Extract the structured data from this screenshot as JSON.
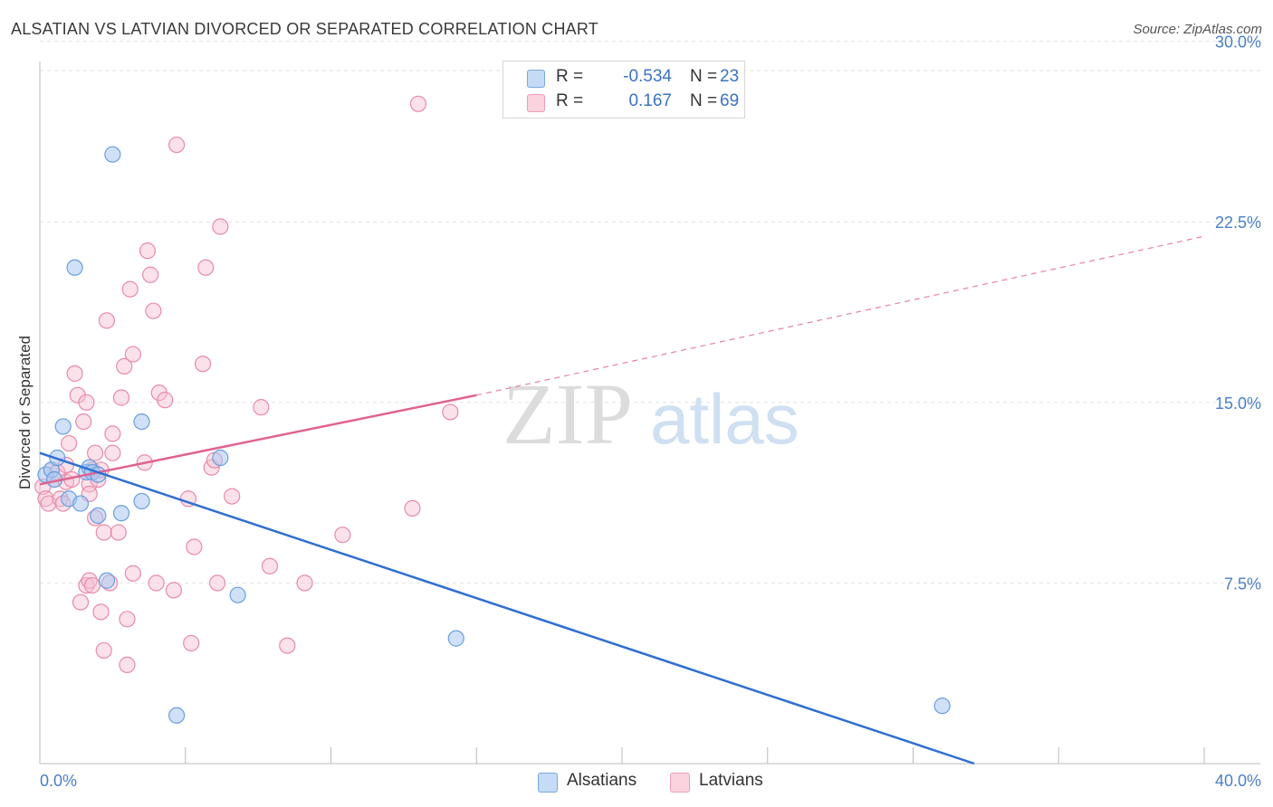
{
  "header": {
    "title": "ALSATIAN VS LATVIAN DIVORCED OR SEPARATED CORRELATION CHART",
    "source": "Source: ZipAtlas.com"
  },
  "legend": {
    "rows": [
      {
        "r_label": "R =",
        "r_value": "-0.534",
        "n_label": "N =",
        "n_value": "23"
      },
      {
        "r_label": "R =",
        "r_value": "0.167",
        "n_label": "N =",
        "n_value": "69"
      }
    ]
  },
  "bottom_legend": {
    "alsatians": "Alsatians",
    "latvians": "Latvians"
  },
  "watermark": {
    "zip": "ZIP",
    "atlas": "atlas"
  },
  "colors": {
    "alsatian_fill": "#a9c8f0",
    "alsatian_stroke": "#6a9edf",
    "alsatian_line": "#2f6fd1",
    "latvian_fill": "#f7bfd0",
    "latvian_stroke": "#e98aa8",
    "latvian_line": "#e0628f",
    "tick_text": "#4a7fc9"
  },
  "chart_data": {
    "type": "scatter",
    "title": "ALSATIAN VS LATVIAN DIVORCED OR SEPARATED CORRELATION CHART",
    "xlabel": "",
    "ylabel": "Divorced or Separated",
    "xlim": [
      0,
      40
    ],
    "ylim": [
      0,
      31
    ],
    "x_tick_labels": [
      "0.0%",
      "40.0%"
    ],
    "y_ticks": [
      7.5,
      15.0,
      22.5,
      30.0
    ],
    "y_tick_labels": [
      "7.5%",
      "15.0%",
      "22.5%",
      "30.0%"
    ],
    "grid": true,
    "series": [
      {
        "name": "Alsatians",
        "r": -0.534,
        "n": 23,
        "trend": {
          "x": [
            0,
            32.1
          ],
          "y": [
            12.9,
            0
          ]
        },
        "points": [
          [
            0.2,
            12.0
          ],
          [
            0.4,
            12.2
          ],
          [
            0.5,
            11.8
          ],
          [
            0.6,
            12.7
          ],
          [
            0.8,
            14.0
          ],
          [
            1.0,
            11.0
          ],
          [
            1.2,
            20.6
          ],
          [
            1.4,
            10.8
          ],
          [
            1.6,
            12.1
          ],
          [
            1.7,
            12.3
          ],
          [
            1.8,
            12.1
          ],
          [
            2.0,
            12.0
          ],
          [
            2.0,
            10.3
          ],
          [
            2.3,
            7.6
          ],
          [
            2.5,
            25.3
          ],
          [
            2.8,
            10.4
          ],
          [
            3.5,
            10.9
          ],
          [
            3.5,
            14.2
          ],
          [
            4.7,
            2.0
          ],
          [
            6.2,
            12.7
          ],
          [
            6.8,
            7.0
          ],
          [
            14.3,
            5.2
          ],
          [
            31.0,
            2.4
          ]
        ]
      },
      {
        "name": "Latvians",
        "r": 0.167,
        "n": 69,
        "trend": {
          "x": [
            0,
            15.0
          ],
          "y": [
            11.6,
            15.3
          ]
        },
        "trend_extension": {
          "x": [
            15.0,
            40.0
          ],
          "y": [
            15.3,
            21.9
          ]
        },
        "points": [
          [
            0.1,
            11.5
          ],
          [
            0.2,
            11.0
          ],
          [
            0.3,
            10.8
          ],
          [
            0.4,
            12.2
          ],
          [
            0.5,
            11.8
          ],
          [
            0.6,
            12.1
          ],
          [
            0.7,
            11.0
          ],
          [
            0.8,
            10.8
          ],
          [
            0.9,
            11.7
          ],
          [
            0.9,
            12.4
          ],
          [
            1.0,
            13.3
          ],
          [
            1.1,
            11.8
          ],
          [
            1.2,
            16.2
          ],
          [
            1.3,
            15.3
          ],
          [
            1.4,
            6.7
          ],
          [
            1.5,
            14.2
          ],
          [
            1.6,
            15.0
          ],
          [
            1.6,
            7.4
          ],
          [
            1.7,
            11.6
          ],
          [
            1.7,
            11.2
          ],
          [
            1.7,
            7.6
          ],
          [
            1.8,
            7.4
          ],
          [
            1.8,
            12.2
          ],
          [
            1.9,
            10.2
          ],
          [
            1.9,
            12.9
          ],
          [
            2.0,
            11.8
          ],
          [
            2.1,
            6.3
          ],
          [
            2.1,
            12.2
          ],
          [
            2.2,
            4.7
          ],
          [
            2.2,
            9.6
          ],
          [
            2.3,
            18.4
          ],
          [
            2.4,
            7.5
          ],
          [
            2.5,
            13.7
          ],
          [
            2.5,
            12.9
          ],
          [
            2.7,
            9.6
          ],
          [
            2.8,
            15.2
          ],
          [
            2.9,
            16.5
          ],
          [
            3.0,
            6.0
          ],
          [
            3.0,
            4.1
          ],
          [
            3.1,
            19.7
          ],
          [
            3.2,
            7.9
          ],
          [
            3.2,
            17.0
          ],
          [
            3.6,
            12.5
          ],
          [
            3.7,
            21.3
          ],
          [
            3.8,
            20.3
          ],
          [
            3.9,
            18.8
          ],
          [
            4.0,
            7.5
          ],
          [
            4.1,
            15.4
          ],
          [
            4.3,
            15.1
          ],
          [
            4.6,
            7.2
          ],
          [
            4.7,
            25.7
          ],
          [
            5.1,
            11.0
          ],
          [
            5.2,
            5.0
          ],
          [
            5.3,
            9.0
          ],
          [
            5.6,
            16.6
          ],
          [
            5.7,
            20.6
          ],
          [
            5.9,
            12.3
          ],
          [
            6.0,
            12.6
          ],
          [
            6.1,
            7.5
          ],
          [
            6.2,
            22.3
          ],
          [
            6.6,
            11.1
          ],
          [
            7.6,
            14.8
          ],
          [
            7.9,
            8.2
          ],
          [
            8.5,
            4.9
          ],
          [
            9.1,
            7.5
          ],
          [
            10.4,
            9.5
          ],
          [
            12.8,
            10.6
          ],
          [
            13.0,
            27.4
          ],
          [
            14.1,
            14.6
          ]
        ]
      }
    ]
  }
}
